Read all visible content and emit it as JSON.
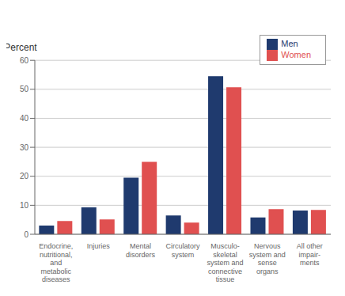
{
  "chart_data": {
    "type": "bar",
    "ylabel": "Percent",
    "categories": [
      "Endocrine,\nnutritional,\nand\nmetabolic\ndiseases",
      "Injuries",
      "Mental\ndisorders",
      "Circulatory\nsystem",
      "Musculo-\nskeletal\nsystem and\nconnective\ntissue",
      "Nervous\nsystem and\nsense\norgans",
      "All other\nimpair-\nments"
    ],
    "series": [
      {
        "name": "Men",
        "color": "#1f3a6e",
        "values": [
          3.0,
          9.3,
          19.5,
          6.5,
          54.5,
          5.8,
          8.2
        ]
      },
      {
        "name": "Women",
        "color": "#e05050",
        "values": [
          4.6,
          5.1,
          25.0,
          4.0,
          50.7,
          8.7,
          8.4
        ]
      }
    ],
    "ylim": [
      0,
      60
    ],
    "yticks": [
      0,
      10,
      20,
      30,
      40,
      50,
      60
    ],
    "grid": true,
    "legend": "upper right"
  }
}
